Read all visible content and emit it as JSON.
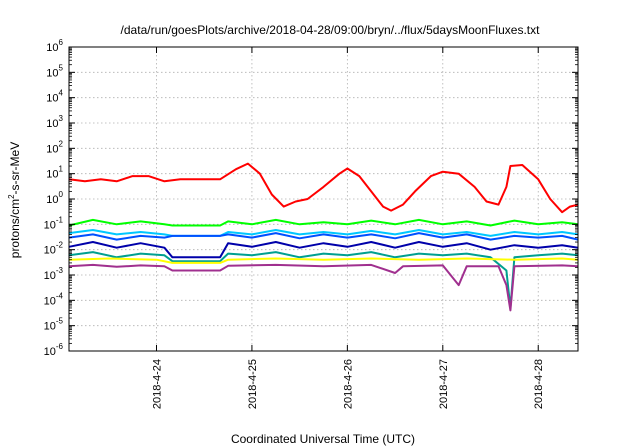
{
  "chart_data": {
    "type": "line",
    "title": "/data/run/goesPlots/archive/2018-04-28/09:00/bryn/../flux/5daysMoonFluxes.txt",
    "xlabel": "Coordinated Universal Time (UTC)",
    "ylabel": {
      "base": "protons/cm",
      "sup": "2",
      "rest": "-s-sr-MeV"
    },
    "y_scale": "log",
    "ylim": [
      1e-06,
      1000000.0
    ],
    "x_domain": [
      "2018-04-23 02:00",
      "2018-04-28 10:00"
    ],
    "grid": true,
    "legend": "none",
    "x_ticks": [
      {
        "label": "2018-4-24",
        "t": "2018-04-24"
      },
      {
        "label": "2018-4-25",
        "t": "2018-04-25"
      },
      {
        "label": "2018-4-26",
        "t": "2018-04-26"
      },
      {
        "label": "2018-4-27",
        "t": "2018-04-27"
      },
      {
        "label": "2018-4-28",
        "t": "2018-04-28"
      }
    ],
    "y_ticks": [
      {
        "base": "10",
        "exp": "6"
      },
      {
        "base": "10",
        "exp": "5"
      },
      {
        "base": "10",
        "exp": "4"
      },
      {
        "base": "10",
        "exp": "3"
      },
      {
        "base": "10",
        "exp": "2"
      },
      {
        "base": "10",
        "exp": "1"
      },
      {
        "base": "10",
        "exp": "0"
      },
      {
        "base": "10",
        "exp": "-1"
      },
      {
        "base": "10",
        "exp": "-2"
      },
      {
        "base": "10",
        "exp": "-3"
      },
      {
        "base": "10",
        "exp": "-4"
      },
      {
        "base": "10",
        "exp": "-5"
      },
      {
        "base": "10",
        "exp": "-6"
      }
    ],
    "series": [
      {
        "color": "#ff0000",
        "points": [
          [
            "2018-04-23 02:00",
            6
          ],
          [
            "2018-04-23 06:00",
            5
          ],
          [
            "2018-04-23 10:00",
            6
          ],
          [
            "2018-04-23 14:00",
            5
          ],
          [
            "2018-04-23 18:00",
            8
          ],
          [
            "2018-04-23 22:00",
            8
          ],
          [
            "2018-04-24 02:00",
            5
          ],
          [
            "2018-04-24 06:00",
            6
          ],
          [
            "2018-04-24 10:00",
            6
          ],
          [
            "2018-04-24 14:00",
            6
          ],
          [
            "2018-04-24 16:00",
            6
          ],
          [
            "2018-04-24 20:00",
            15
          ],
          [
            "2018-04-24 23:00",
            25
          ],
          [
            "2018-04-25 02:00",
            10
          ],
          [
            "2018-04-25 05:00",
            1.5
          ],
          [
            "2018-04-25 08:00",
            0.5
          ],
          [
            "2018-04-25 11:00",
            0.8
          ],
          [
            "2018-04-25 14:00",
            1
          ],
          [
            "2018-04-25 18:00",
            3
          ],
          [
            "2018-04-25 22:00",
            10
          ],
          [
            "2018-04-26 00:00",
            16
          ],
          [
            "2018-04-26 03:00",
            8
          ],
          [
            "2018-04-26 06:00",
            2
          ],
          [
            "2018-04-26 09:00",
            0.5
          ],
          [
            "2018-04-26 11:00",
            0.35
          ],
          [
            "2018-04-26 14:00",
            0.6
          ],
          [
            "2018-04-26 17:00",
            2
          ],
          [
            "2018-04-26 21:00",
            8
          ],
          [
            "2018-04-27 00:00",
            12
          ],
          [
            "2018-04-27 04:00",
            10
          ],
          [
            "2018-04-27 08:00",
            3
          ],
          [
            "2018-04-27 11:00",
            0.8
          ],
          [
            "2018-04-27 14:00",
            0.6
          ],
          [
            "2018-04-27 16:00",
            3
          ],
          [
            "2018-04-27 17:00",
            20
          ],
          [
            "2018-04-27 20:00",
            22
          ],
          [
            "2018-04-28 00:00",
            6
          ],
          [
            "2018-04-28 03:00",
            1
          ],
          [
            "2018-04-28 06:00",
            0.3
          ],
          [
            "2018-04-28 08:00",
            0.5
          ],
          [
            "2018-04-28 10:00",
            0.6
          ]
        ]
      },
      {
        "color": "#00ff00",
        "points": [
          [
            "2018-04-23 02:00",
            0.09
          ],
          [
            "2018-04-23 08:00",
            0.15
          ],
          [
            "2018-04-23 14:00",
            0.1
          ],
          [
            "2018-04-23 20:00",
            0.13
          ],
          [
            "2018-04-24 02:00",
            0.1
          ],
          [
            "2018-04-24 04:00",
            0.09
          ],
          [
            "2018-04-24 16:00",
            0.09
          ],
          [
            "2018-04-24 18:00",
            0.13
          ],
          [
            "2018-04-25 00:00",
            0.1
          ],
          [
            "2018-04-25 06:00",
            0.15
          ],
          [
            "2018-04-25 12:00",
            0.1
          ],
          [
            "2018-04-25 18:00",
            0.12
          ],
          [
            "2018-04-26 00:00",
            0.1
          ],
          [
            "2018-04-26 06:00",
            0.14
          ],
          [
            "2018-04-26 12:00",
            0.1
          ],
          [
            "2018-04-26 18:00",
            0.15
          ],
          [
            "2018-04-27 00:00",
            0.1
          ],
          [
            "2018-04-27 06:00",
            0.13
          ],
          [
            "2018-04-27 12:00",
            0.09
          ],
          [
            "2018-04-27 18:00",
            0.14
          ],
          [
            "2018-04-28 00:00",
            0.1
          ],
          [
            "2018-04-28 06:00",
            0.12
          ],
          [
            "2018-04-28 10:00",
            0.1
          ]
        ]
      },
      {
        "color": "#00c8ff",
        "points": [
          [
            "2018-04-23 02:00",
            0.045
          ],
          [
            "2018-04-23 08:00",
            0.06
          ],
          [
            "2018-04-23 14:00",
            0.04
          ],
          [
            "2018-04-23 20:00",
            0.05
          ],
          [
            "2018-04-24 02:00",
            0.04
          ],
          [
            "2018-04-24 04:00",
            0.035
          ],
          [
            "2018-04-24 16:00",
            0.035
          ],
          [
            "2018-04-24 18:00",
            0.05
          ],
          [
            "2018-04-25 00:00",
            0.04
          ],
          [
            "2018-04-25 06:00",
            0.06
          ],
          [
            "2018-04-25 12:00",
            0.04
          ],
          [
            "2018-04-25 18:00",
            0.05
          ],
          [
            "2018-04-26 00:00",
            0.04
          ],
          [
            "2018-04-26 06:00",
            0.055
          ],
          [
            "2018-04-26 12:00",
            0.04
          ],
          [
            "2018-04-26 18:00",
            0.06
          ],
          [
            "2018-04-27 00:00",
            0.04
          ],
          [
            "2018-04-27 06:00",
            0.05
          ],
          [
            "2018-04-27 12:00",
            0.035
          ],
          [
            "2018-04-27 18:00",
            0.05
          ],
          [
            "2018-04-28 00:00",
            0.04
          ],
          [
            "2018-04-28 06:00",
            0.05
          ],
          [
            "2018-04-28 10:00",
            0.04
          ]
        ]
      },
      {
        "color": "#0050ff",
        "points": [
          [
            "2018-04-23 02:00",
            0.03
          ],
          [
            "2018-04-23 08:00",
            0.04
          ],
          [
            "2018-04-23 14:00",
            0.025
          ],
          [
            "2018-04-23 20:00",
            0.035
          ],
          [
            "2018-04-24 02:00",
            0.03
          ],
          [
            "2018-04-24 04:00",
            0.035
          ],
          [
            "2018-04-24 16:00",
            0.035
          ],
          [
            "2018-04-24 18:00",
            0.04
          ],
          [
            "2018-04-25 00:00",
            0.03
          ],
          [
            "2018-04-25 06:00",
            0.045
          ],
          [
            "2018-04-25 12:00",
            0.028
          ],
          [
            "2018-04-25 18:00",
            0.04
          ],
          [
            "2018-04-26 00:00",
            0.03
          ],
          [
            "2018-04-26 06:00",
            0.04
          ],
          [
            "2018-04-26 12:00",
            0.028
          ],
          [
            "2018-04-26 18:00",
            0.045
          ],
          [
            "2018-04-27 00:00",
            0.03
          ],
          [
            "2018-04-27 06:00",
            0.04
          ],
          [
            "2018-04-27 12:00",
            0.025
          ],
          [
            "2018-04-27 18:00",
            0.035
          ],
          [
            "2018-04-28 00:00",
            0.03
          ],
          [
            "2018-04-28 06:00",
            0.035
          ],
          [
            "2018-04-28 10:00",
            0.025
          ]
        ]
      },
      {
        "color": "#0000aa",
        "points": [
          [
            "2018-04-23 02:00",
            0.013
          ],
          [
            "2018-04-23 08:00",
            0.02
          ],
          [
            "2018-04-23 14:00",
            0.012
          ],
          [
            "2018-04-23 20:00",
            0.018
          ],
          [
            "2018-04-24 02:00",
            0.012
          ],
          [
            "2018-04-24 04:00",
            0.005
          ],
          [
            "2018-04-24 16:00",
            0.005
          ],
          [
            "2018-04-24 18:00",
            0.018
          ],
          [
            "2018-04-25 00:00",
            0.013
          ],
          [
            "2018-04-25 06:00",
            0.02
          ],
          [
            "2018-04-25 12:00",
            0.012
          ],
          [
            "2018-04-25 18:00",
            0.018
          ],
          [
            "2018-04-26 00:00",
            0.013
          ],
          [
            "2018-04-26 06:00",
            0.02
          ],
          [
            "2018-04-26 12:00",
            0.012
          ],
          [
            "2018-04-26 18:00",
            0.02
          ],
          [
            "2018-04-27 00:00",
            0.013
          ],
          [
            "2018-04-27 06:00",
            0.018
          ],
          [
            "2018-04-27 12:00",
            0.01
          ],
          [
            "2018-04-27 18:00",
            0.015
          ],
          [
            "2018-04-28 00:00",
            0.012
          ],
          [
            "2018-04-28 06:00",
            0.015
          ],
          [
            "2018-04-28 10:00",
            0.012
          ]
        ]
      },
      {
        "color": "#00a090",
        "points": [
          [
            "2018-04-23 02:00",
            0.006
          ],
          [
            "2018-04-23 08:00",
            0.008
          ],
          [
            "2018-04-23 14:00",
            0.005
          ],
          [
            "2018-04-23 20:00",
            0.007
          ],
          [
            "2018-04-24 02:00",
            0.006
          ],
          [
            "2018-04-24 04:00",
            0.0035
          ],
          [
            "2018-04-24 16:00",
            0.0035
          ],
          [
            "2018-04-24 18:00",
            0.007
          ],
          [
            "2018-04-25 00:00",
            0.006
          ],
          [
            "2018-04-25 06:00",
            0.008
          ],
          [
            "2018-04-25 12:00",
            0.005
          ],
          [
            "2018-04-25 18:00",
            0.007
          ],
          [
            "2018-04-26 00:00",
            0.006
          ],
          [
            "2018-04-26 06:00",
            0.008
          ],
          [
            "2018-04-26 12:00",
            0.005
          ],
          [
            "2018-04-26 18:00",
            0.007
          ],
          [
            "2018-04-27 00:00",
            0.006
          ],
          [
            "2018-04-27 06:00",
            0.007
          ],
          [
            "2018-04-27 12:00",
            0.005
          ],
          [
            "2018-04-27 16:00",
            0.0015
          ],
          [
            "2018-04-27 17:00",
            5e-05
          ],
          [
            "2018-04-27 18:00",
            0.005
          ],
          [
            "2018-04-28 00:00",
            0.006
          ],
          [
            "2018-04-28 06:00",
            0.007
          ],
          [
            "2018-04-28 10:00",
            0.006
          ]
        ]
      },
      {
        "color": "#ffff00",
        "points": [
          [
            "2018-04-23 02:00",
            0.004
          ],
          [
            "2018-04-23 12:00",
            0.0045
          ],
          [
            "2018-04-24 00:00",
            0.004
          ],
          [
            "2018-04-24 04:00",
            0.003
          ],
          [
            "2018-04-24 16:00",
            0.003
          ],
          [
            "2018-04-24 18:00",
            0.004
          ],
          [
            "2018-04-25 06:00",
            0.0045
          ],
          [
            "2018-04-25 18:00",
            0.004
          ],
          [
            "2018-04-26 06:00",
            0.0045
          ],
          [
            "2018-04-26 18:00",
            0.004
          ],
          [
            "2018-04-27 06:00",
            0.0045
          ],
          [
            "2018-04-27 18:00",
            0.004
          ],
          [
            "2018-04-28 06:00",
            0.0045
          ],
          [
            "2018-04-28 10:00",
            0.004
          ]
        ]
      },
      {
        "color": "#a0308f",
        "points": [
          [
            "2018-04-23 02:00",
            0.0022
          ],
          [
            "2018-04-23 08:00",
            0.0025
          ],
          [
            "2018-04-23 14:00",
            0.0021
          ],
          [
            "2018-04-23 20:00",
            0.0024
          ],
          [
            "2018-04-24 02:00",
            0.0022
          ],
          [
            "2018-04-24 04:00",
            0.0015
          ],
          [
            "2018-04-24 16:00",
            0.0015
          ],
          [
            "2018-04-24 18:00",
            0.0023
          ],
          [
            "2018-04-25 06:00",
            0.0025
          ],
          [
            "2018-04-25 18:00",
            0.0022
          ],
          [
            "2018-04-26 06:00",
            0.0025
          ],
          [
            "2018-04-26 12:00",
            0.0012
          ],
          [
            "2018-04-26 14:00",
            0.0022
          ],
          [
            "2018-04-27 00:00",
            0.0024
          ],
          [
            "2018-04-27 04:00",
            0.0004
          ],
          [
            "2018-04-27 06:00",
            0.0022
          ],
          [
            "2018-04-27 14:00",
            0.0022
          ],
          [
            "2018-04-27 16:00",
            0.0004
          ],
          [
            "2018-04-27 17:00",
            4e-05
          ],
          [
            "2018-04-27 18:00",
            0.0022
          ],
          [
            "2018-04-28 06:00",
            0.0024
          ],
          [
            "2018-04-28 10:00",
            0.0022
          ]
        ]
      }
    ]
  }
}
